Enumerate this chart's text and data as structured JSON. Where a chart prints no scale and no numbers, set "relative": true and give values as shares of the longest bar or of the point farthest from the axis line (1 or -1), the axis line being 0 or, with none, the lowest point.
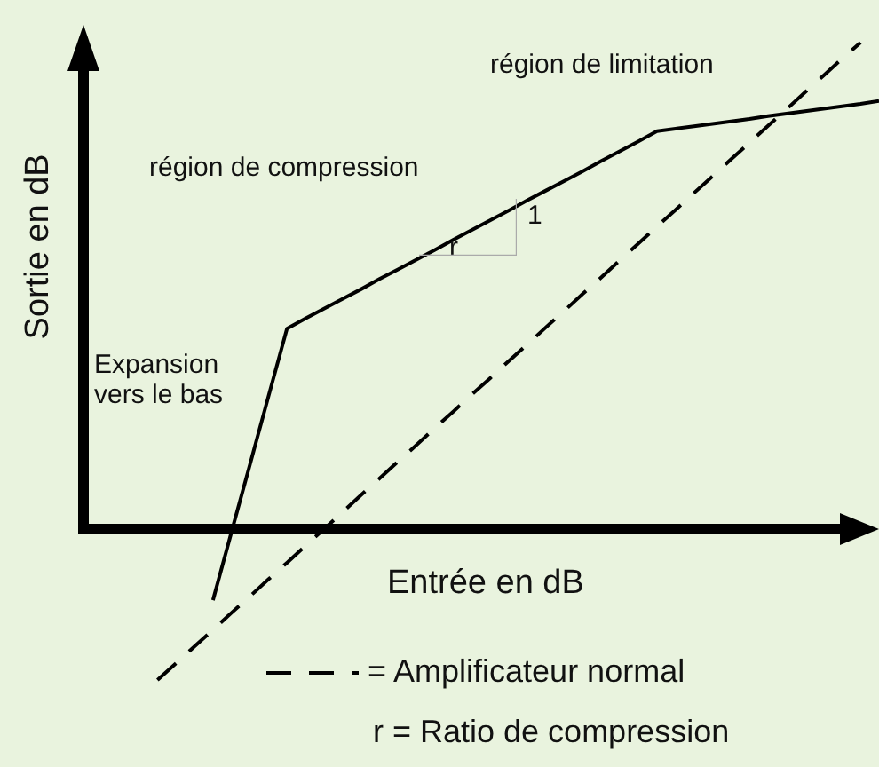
{
  "chart_data": {
    "type": "line",
    "relative": true,
    "xlabel": "Entrée en dB",
    "ylabel": "Sortie en dB",
    "legend": "bottom",
    "marker": "none",
    "categories": [
      null,
      null,
      null,
      null,
      null,
      null,
      null,
      null,
      null,
      null,
      null,
      null,
      null,
      null,
      null,
      null,
      null,
      null,
      null,
      null,
      null,
      null,
      null,
      null,
      null,
      null,
      null,
      null,
      null,
      null,
      null,
      null,
      null,
      null,
      null,
      null,
      null,
      null,
      null,
      null,
      null,
      null,
      null,
      null
    ],
    "series": [
      {
        "color": "#000000",
        "line_style": "solid",
        "values": [
          null,
          null,
          null,
          null,
          null,
          null,
          null,
          -0.146,
          -0.006,
          0.133,
          0.273,
          0.412,
          0.433,
          0.453,
          0.473,
          0.493,
          0.514,
          0.534,
          0.554,
          0.574,
          0.595,
          0.615,
          0.635,
          0.655,
          0.676,
          0.696,
          0.716,
          0.736,
          0.757,
          0.777,
          0.797,
          0.818,
          0.823,
          0.828,
          0.833,
          0.838,
          0.843,
          0.849,
          0.854,
          0.859,
          0.864,
          0.869,
          0.874,
          0.88
        ]
      },
      {
        "name": "= Amplificateur normal",
        "color": "#000000",
        "line_style": "dashed",
        "values": [
          null,
          null,
          null,
          null,
          -0.31,
          -0.276,
          -0.241,
          -0.207,
          -0.172,
          -0.138,
          -0.103,
          -0.069,
          -0.034,
          0.0,
          0.035,
          0.07,
          0.104,
          0.139,
          0.173,
          0.208,
          0.242,
          0.277,
          0.311,
          0.346,
          0.38,
          0.415,
          0.449,
          0.484,
          0.518,
          0.553,
          0.587,
          0.622,
          0.656,
          0.691,
          0.725,
          0.76,
          0.794,
          0.829,
          0.863,
          0.898,
          0.932,
          0.967,
          1.0,
          null
        ]
      }
    ],
    "annotations": [
      "région de limitation",
      "région de compression",
      "1",
      "r",
      "Expansion\nvers le bas",
      "r = Ratio de compression"
    ]
  }
}
